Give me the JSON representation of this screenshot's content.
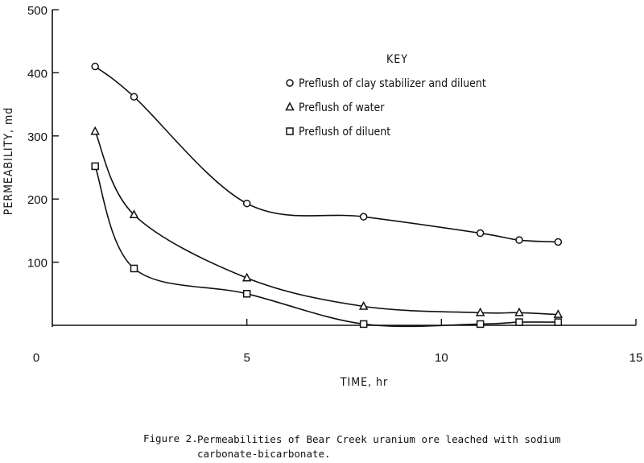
{
  "chart_data": {
    "type": "line",
    "xlabel": "TIME, hr",
    "ylabel": "PERMEABILITY, md",
    "xlim": [
      0,
      15
    ],
    "ylim": [
      0,
      500
    ],
    "x_ticks": [
      "0",
      "5",
      "10",
      "15"
    ],
    "y_ticks": [
      "100",
      "200",
      "300",
      "400",
      "500"
    ],
    "grid": false,
    "legend_title": "KEY",
    "legend_position": "top-right",
    "series": [
      {
        "name": "Preflush of clay stabilizer and diluent",
        "marker": "circle",
        "x": [
          1.1,
          2.1,
          5.0,
          8.0,
          11.0,
          12.0,
          13.0
        ],
        "y": [
          410,
          362,
          193,
          172,
          146,
          135,
          132
        ]
      },
      {
        "name": "Preflush of water",
        "marker": "triangle",
        "x": [
          1.1,
          2.1,
          5.0,
          8.0,
          11.0,
          12.0,
          13.0
        ],
        "y": [
          307,
          175,
          75,
          30,
          20,
          20,
          17
        ]
      },
      {
        "name": "Preflush of diluent",
        "marker": "square",
        "x": [
          1.1,
          2.1,
          5.0,
          8.0,
          11.0,
          12.0,
          13.0
        ],
        "y": [
          252,
          90,
          50,
          2,
          2,
          5,
          5
        ]
      }
    ]
  },
  "caption": {
    "label": "Figure 2.",
    "text": "Permeabilities of Bear Creek uranium ore leached with sodium\ncarbonate-bicarbonate."
  },
  "colors": {
    "ink": "#111111",
    "background": "#ffffff"
  }
}
